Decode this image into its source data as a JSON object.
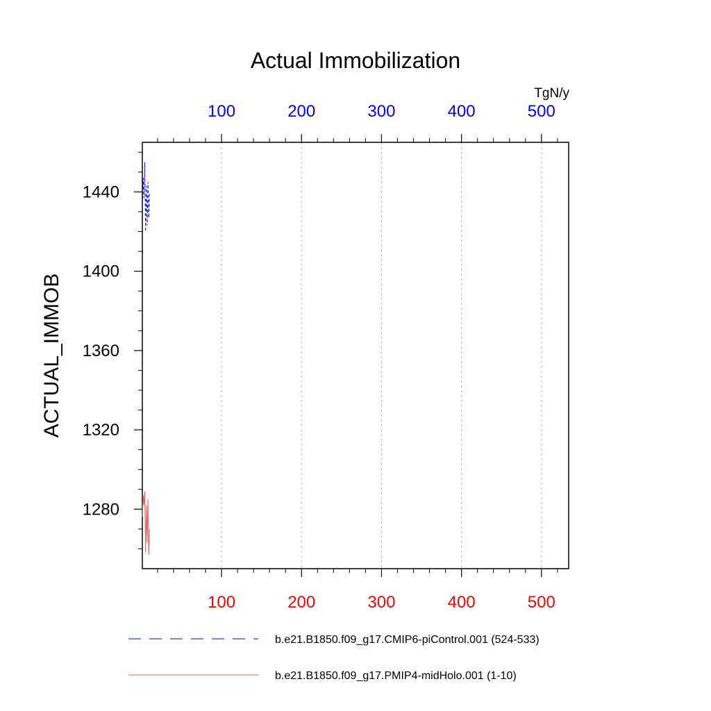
{
  "chart_data": {
    "type": "line",
    "title": "Actual Immobilization",
    "ylabel": "ACTUAL_IMMOB",
    "units": "TgN/y",
    "ylim": [
      1250,
      1465
    ],
    "xlim": [
      1,
      534
    ],
    "grid": "x-dashed",
    "y_ticks": [
      1280,
      1320,
      1360,
      1400,
      1440
    ],
    "x_ticks_top": [
      100,
      200,
      300,
      400,
      500
    ],
    "x_ticks_bottom": [
      100,
      200,
      300,
      400,
      500
    ],
    "top_axis_color": "#0000ff",
    "bottom_axis_color": "#ff0000",
    "series": [
      {
        "name": "b.e21.B1850.f09_g17.CMIP6-piControl.001 (524-533)",
        "color": "#0000ff",
        "dash": "dashed",
        "axis": "top",
        "x": [
          1,
          2,
          3,
          4,
          5,
          6,
          7,
          8,
          9,
          10
        ],
        "y": [
          1432,
          1447,
          1437,
          1455,
          1420,
          1443,
          1423,
          1445,
          1427,
          1440
        ]
      },
      {
        "name": "b.e21.B1850.f09_g17.PMIP4-midHolo.001 (1-10)",
        "color": "#e06060",
        "dash": "solid",
        "axis": "bottom",
        "x": [
          1,
          2,
          3,
          4,
          5,
          6,
          7,
          8,
          9,
          10
        ],
        "y": [
          1276,
          1287,
          1282,
          1289,
          1258,
          1282,
          1263,
          1285,
          1257,
          1270
        ]
      }
    ],
    "legend_position": "bottom"
  }
}
